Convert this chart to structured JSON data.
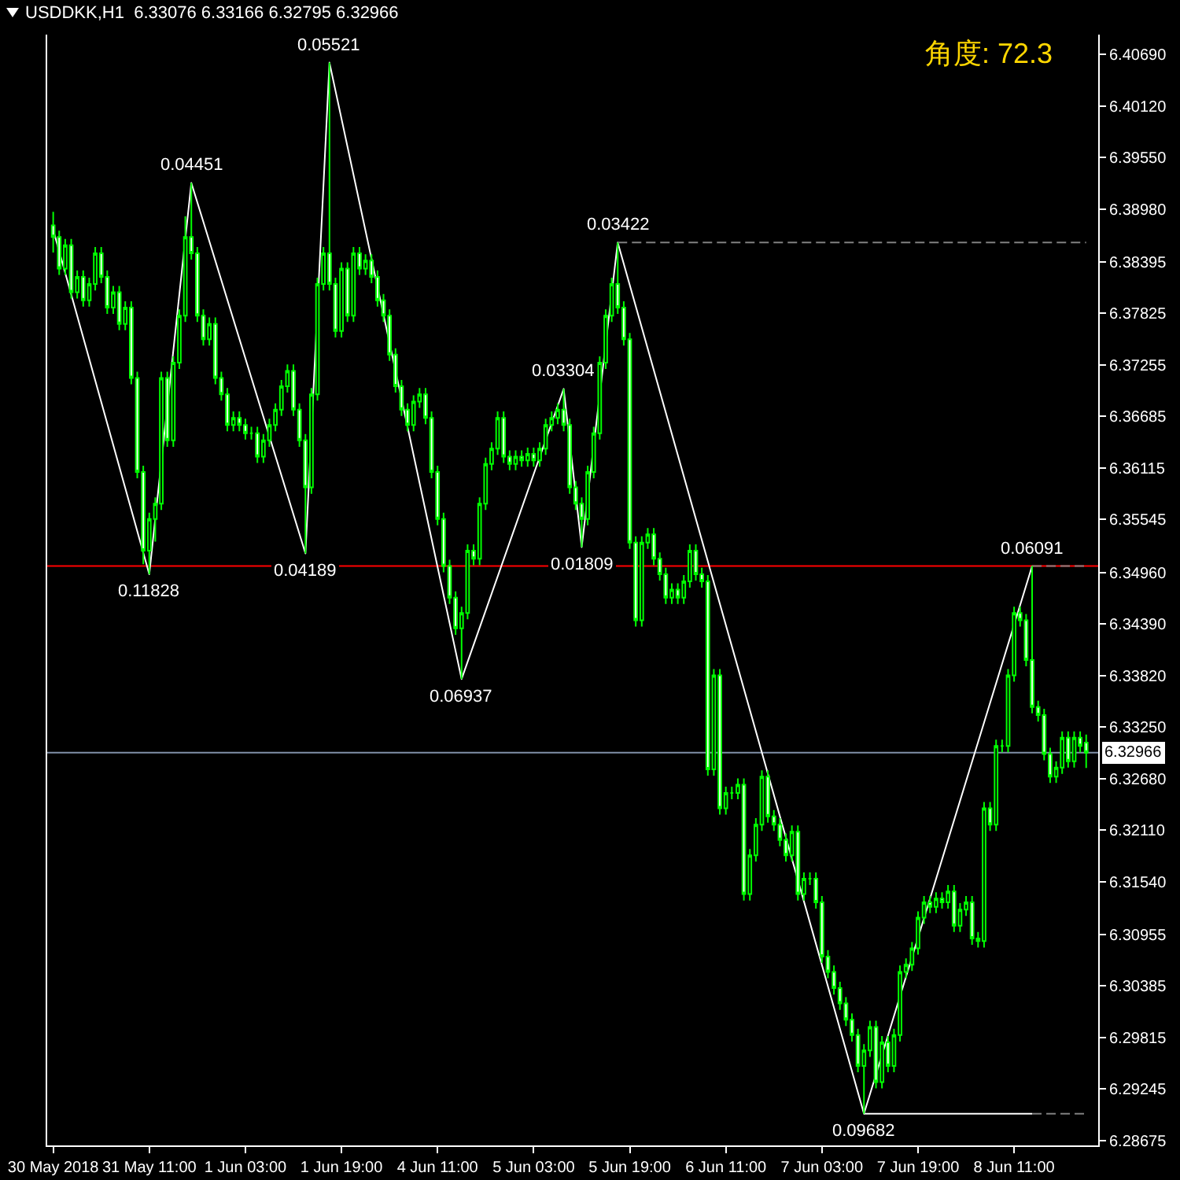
{
  "chart_data": {
    "type": "candlestick",
    "title": "USDDKK,H1  6.33076 6.33166 6.32795 6.32966",
    "annotations": [
      "角度: 72.3",
      {
        "text": "0.11828",
        "y": 6.3494
      },
      {
        "text": "0.04451",
        "y": 6.3927
      },
      {
        "text": "0.04189",
        "y": 6.3517
      },
      {
        "text": "0.05521",
        "y": 6.406
      },
      {
        "text": "0.06937",
        "y": 6.3378
      },
      {
        "text": "0.03304",
        "y": 6.3699
      },
      {
        "text": "0.01809",
        "y": 6.3524
      },
      {
        "text": "0.03422",
        "y": 6.3861
      },
      {
        "text": "0.09682",
        "y": 6.2897
      },
      {
        "text": "0.06091",
        "y": 6.3503
      }
    ],
    "categories": [
      "30 May 2018",
      null,
      null,
      null,
      null,
      null,
      null,
      null,
      null,
      null,
      null,
      null,
      null,
      null,
      null,
      null,
      "31 May 11:00",
      null,
      null,
      null,
      null,
      null,
      null,
      null,
      null,
      null,
      null,
      null,
      null,
      null,
      null,
      null,
      "1 Jun 03:00",
      null,
      null,
      null,
      null,
      null,
      null,
      null,
      null,
      null,
      null,
      null,
      null,
      null,
      null,
      null,
      "1 Jun 19:00",
      null,
      null,
      null,
      null,
      null,
      null,
      null,
      null,
      null,
      null,
      null,
      null,
      null,
      null,
      null,
      "4 Jun 11:00",
      null,
      null,
      null,
      null,
      null,
      null,
      null,
      null,
      null,
      null,
      null,
      null,
      null,
      null,
      null,
      "5 Jun 03:00",
      null,
      null,
      null,
      null,
      null,
      null,
      null,
      null,
      null,
      null,
      null,
      null,
      null,
      null,
      null,
      "5 Jun 19:00",
      null,
      null,
      null,
      null,
      null,
      null,
      null,
      null,
      null,
      null,
      null,
      null,
      null,
      null,
      null,
      "6 Jun 11:00",
      null,
      null,
      null,
      null,
      null,
      null,
      null,
      null,
      null,
      null,
      null,
      null,
      null,
      null,
      null,
      "7 Jun 03:00",
      null,
      null,
      null,
      null,
      null,
      null,
      null,
      null,
      null,
      null,
      null,
      null,
      null,
      null,
      null,
      "7 Jun 19:00",
      null,
      null,
      null,
      null,
      null,
      null,
      null,
      null,
      null,
      null,
      null,
      null,
      null,
      null,
      null,
      "8 Jun 11:00",
      null,
      null,
      null,
      null,
      null,
      null,
      null,
      null,
      null,
      null,
      null,
      null
    ],
    "color": "#00ff00",
    "ohlc": [
      [
        6.388,
        6.3895,
        6.385,
        6.3867
      ],
      [
        6.3867,
        6.3874,
        6.3825,
        6.3832
      ],
      [
        6.3832,
        6.3865,
        6.3825,
        6.3858
      ],
      [
        6.3858,
        6.3865,
        6.3799,
        6.3806
      ],
      [
        6.3806,
        6.383,
        6.3799,
        6.3823
      ],
      [
        6.3823,
        6.383,
        6.379,
        6.3797
      ],
      [
        6.3797,
        6.3822,
        6.379,
        6.3815
      ],
      [
        6.3815,
        6.3856,
        6.3808,
        6.3849
      ],
      [
        6.3849,
        6.3856,
        6.3816,
        6.3823
      ],
      [
        6.3823,
        6.383,
        6.3782,
        6.3789
      ],
      [
        6.3789,
        6.3813,
        6.3782,
        6.3806
      ],
      [
        6.3806,
        6.3813,
        6.3764,
        6.3771
      ],
      [
        6.3771,
        6.3796,
        6.3764,
        6.3789
      ],
      [
        6.3789,
        6.3796,
        6.3704,
        6.3711
      ],
      [
        6.3711,
        6.3718,
        6.36,
        6.3607
      ],
      [
        6.3607,
        6.3614,
        6.3505,
        6.352
      ],
      [
        6.352,
        6.3562,
        6.3494,
        6.3555
      ],
      [
        6.3555,
        6.3579,
        6.353,
        6.3572
      ],
      [
        6.3572,
        6.3718,
        6.3565,
        6.3711
      ],
      [
        6.3711,
        6.3718,
        6.3635,
        6.3642
      ],
      [
        6.3642,
        6.3735,
        6.3635,
        6.3728
      ],
      [
        6.3728,
        6.3787,
        6.3721,
        6.378
      ],
      [
        6.378,
        6.389,
        6.3773,
        6.3867
      ],
      [
        6.3867,
        6.3927,
        6.3842,
        6.3849
      ],
      [
        6.3849,
        6.3856,
        6.3773,
        6.378
      ],
      [
        6.378,
        6.3787,
        6.3747,
        6.3754
      ],
      [
        6.3754,
        6.3778,
        6.3747,
        6.3771
      ],
      [
        6.3771,
        6.3778,
        6.3704,
        6.3711
      ],
      [
        6.3711,
        6.3718,
        6.3686,
        6.3693
      ],
      [
        6.3693,
        6.37,
        6.3652,
        6.3659
      ],
      [
        6.3659,
        6.3674,
        6.3652,
        6.3667
      ],
      [
        6.3667,
        6.3674,
        6.3652,
        6.3659
      ],
      [
        6.3659,
        6.3666,
        6.3643,
        6.365
      ],
      [
        6.365,
        6.3657,
        6.3643,
        6.365
      ],
      [
        6.365,
        6.3657,
        6.3617,
        6.3624
      ],
      [
        6.3624,
        6.3649,
        6.3617,
        6.3642
      ],
      [
        6.3642,
        6.3666,
        6.3635,
        6.3659
      ],
      [
        6.3659,
        6.3683,
        6.3652,
        6.3676
      ],
      [
        6.3676,
        6.3709,
        6.3669,
        6.3702
      ],
      [
        6.3702,
        6.3726,
        6.3695,
        6.3719
      ],
      [
        6.3719,
        6.3726,
        6.3669,
        6.3676
      ],
      [
        6.3676,
        6.3683,
        6.3635,
        6.3642
      ],
      [
        6.3642,
        6.3649,
        6.3517,
        6.359
      ],
      [
        6.359,
        6.37,
        6.3583,
        6.3693
      ],
      [
        6.3693,
        6.3822,
        6.3686,
        6.3815
      ],
      [
        6.3815,
        6.3856,
        6.3808,
        6.3849
      ],
      [
        6.3849,
        6.406,
        6.3808,
        6.3815
      ],
      [
        6.3815,
        6.3822,
        6.3756,
        6.3763
      ],
      [
        6.3763,
        6.3839,
        6.3756,
        6.3832
      ],
      [
        6.3832,
        6.3839,
        6.3773,
        6.378
      ],
      [
        6.378,
        6.3856,
        6.3773,
        6.3849
      ],
      [
        6.3849,
        6.3856,
        6.3825,
        6.3832
      ],
      [
        6.3832,
        6.3848,
        6.3825,
        6.3841
      ],
      [
        6.3841,
        6.3848,
        6.3816,
        6.3823
      ],
      [
        6.3823,
        6.383,
        6.379,
        6.3797
      ],
      [
        6.3797,
        6.3804,
        6.3773,
        6.378
      ],
      [
        6.378,
        6.3787,
        6.373,
        6.3737
      ],
      [
        6.3737,
        6.3744,
        6.3695,
        6.3702
      ],
      [
        6.3702,
        6.3709,
        6.3669,
        6.3676
      ],
      [
        6.3676,
        6.3683,
        6.3652,
        6.3659
      ],
      [
        6.3659,
        6.3692,
        6.3652,
        6.3685
      ],
      [
        6.3685,
        6.37,
        6.3678,
        6.3693
      ],
      [
        6.3693,
        6.37,
        6.366,
        6.3667
      ],
      [
        6.3667,
        6.3674,
        6.36,
        6.3607
      ],
      [
        6.3607,
        6.3614,
        6.3548,
        6.3555
      ],
      [
        6.3555,
        6.3562,
        6.3496,
        6.3503
      ],
      [
        6.3503,
        6.351,
        6.3461,
        6.3468
      ],
      [
        6.3468,
        6.3475,
        6.3427,
        6.3434
      ],
      [
        6.3434,
        6.3458,
        6.3378,
        6.3451
      ],
      [
        6.3451,
        6.3527,
        6.3444,
        6.352
      ],
      [
        6.352,
        6.3527,
        6.3504,
        6.3511
      ],
      [
        6.3511,
        6.3579,
        6.3504,
        6.3572
      ],
      [
        6.3572,
        6.3623,
        6.3565,
        6.3616
      ],
      [
        6.3616,
        6.364,
        6.3609,
        6.3633
      ],
      [
        6.3633,
        6.3674,
        6.3626,
        6.3667
      ],
      [
        6.3667,
        6.3674,
        6.3617,
        6.3624
      ],
      [
        6.3624,
        6.3631,
        6.3609,
        6.3616
      ],
      [
        6.3616,
        6.3631,
        6.3609,
        6.3624
      ],
      [
        6.3624,
        6.3631,
        6.3613,
        6.362
      ],
      [
        6.362,
        6.3634,
        6.3613,
        6.3627
      ],
      [
        6.3627,
        6.3634,
        6.3613,
        6.362
      ],
      [
        6.362,
        6.364,
        6.3613,
        6.3633
      ],
      [
        6.3633,
        6.3666,
        6.3626,
        6.3659
      ],
      [
        6.3659,
        6.3674,
        6.3652,
        6.3667
      ],
      [
        6.3667,
        6.3683,
        6.366,
        6.3676
      ],
      [
        6.3676,
        6.3699,
        6.3652,
        6.3659
      ],
      [
        6.3659,
        6.3666,
        6.3583,
        6.359
      ],
      [
        6.359,
        6.3597,
        6.3565,
        6.3572
      ],
      [
        6.3572,
        6.3579,
        6.3524,
        6.3555
      ],
      [
        6.3555,
        6.3614,
        6.3548,
        6.3607
      ],
      [
        6.3607,
        6.3657,
        6.36,
        6.365
      ],
      [
        6.365,
        6.3735,
        6.3643,
        6.3728
      ],
      [
        6.3728,
        6.3787,
        6.3721,
        6.378
      ],
      [
        6.378,
        6.3822,
        6.3773,
        6.3815
      ],
      [
        6.3815,
        6.3861,
        6.3782,
        6.3789
      ],
      [
        6.3789,
        6.3796,
        6.3747,
        6.3754
      ],
      [
        6.3754,
        6.3761,
        6.3522,
        6.3529
      ],
      [
        6.3529,
        6.3536,
        6.3436,
        6.3443
      ],
      [
        6.3443,
        6.3536,
        6.3436,
        6.3529
      ],
      [
        6.3529,
        6.3545,
        6.3522,
        6.3538
      ],
      [
        6.3538,
        6.3545,
        6.3504,
        6.3511
      ],
      [
        6.3511,
        6.3518,
        6.3487,
        6.3494
      ],
      [
        6.3494,
        6.3501,
        6.3461,
        6.3468
      ],
      [
        6.3468,
        6.3484,
        6.3461,
        6.3477
      ],
      [
        6.3477,
        6.3484,
        6.3461,
        6.3468
      ],
      [
        6.3468,
        6.3493,
        6.3461,
        6.3486
      ],
      [
        6.3486,
        6.3527,
        6.3479,
        6.352
      ],
      [
        6.352,
        6.3527,
        6.3487,
        6.3494
      ],
      [
        6.3494,
        6.3501,
        6.3479,
        6.3486
      ],
      [
        6.3486,
        6.3493,
        6.3271,
        6.3278
      ],
      [
        6.3278,
        6.3389,
        6.3271,
        6.3382
      ],
      [
        6.3382,
        6.3389,
        6.3228,
        6.3235
      ],
      [
        6.3235,
        6.3259,
        6.3228,
        6.3252
      ],
      [
        6.3252,
        6.3259,
        6.3245,
        6.3252
      ],
      [
        6.3252,
        6.3268,
        6.3245,
        6.3261
      ],
      [
        6.3261,
        6.3268,
        6.3133,
        6.314
      ],
      [
        6.314,
        6.319,
        6.3133,
        6.3183
      ],
      [
        6.3183,
        6.3224,
        6.3176,
        6.3217
      ],
      [
        6.3217,
        6.3277,
        6.321,
        6.327
      ],
      [
        6.327,
        6.3277,
        6.3219,
        6.3226
      ],
      [
        6.3226,
        6.3233,
        6.321,
        6.3217
      ],
      [
        6.3217,
        6.3224,
        6.3193,
        6.32
      ],
      [
        6.32,
        6.3207,
        6.3176,
        6.3183
      ],
      [
        6.3183,
        6.3216,
        6.3176,
        6.3209
      ],
      [
        6.3209,
        6.3216,
        6.3133,
        6.314
      ],
      [
        6.314,
        6.3164,
        6.3133,
        6.3157
      ],
      [
        6.3157,
        6.3164,
        6.315,
        6.3157
      ],
      [
        6.3157,
        6.3164,
        6.3124,
        6.3131
      ],
      [
        6.3131,
        6.3138,
        6.3064,
        6.3071
      ],
      [
        6.3071,
        6.3078,
        6.3047,
        6.3054
      ],
      [
        6.3054,
        6.3061,
        6.3029,
        6.3036
      ],
      [
        6.3036,
        6.3043,
        6.3012,
        6.3019
      ],
      [
        6.3019,
        6.3026,
        6.2994,
        6.3001
      ],
      [
        6.3001,
        6.3008,
        6.2977,
        6.2984
      ],
      [
        6.2984,
        6.2991,
        6.2943,
        6.295
      ],
      [
        6.295,
        6.2974,
        6.2897,
        6.2967
      ],
      [
        6.2967,
        6.3,
        6.296,
        6.2993
      ],
      [
        6.2993,
        6.3,
        6.2925,
        6.2932
      ],
      [
        6.2932,
        6.2983,
        6.2925,
        6.2976
      ],
      [
        6.2976,
        6.2983,
        6.2943,
        6.295
      ],
      [
        6.295,
        6.2991,
        6.2943,
        6.2984
      ],
      [
        6.2984,
        6.3061,
        6.2977,
        6.3054
      ],
      [
        6.3054,
        6.3069,
        6.3047,
        6.3062
      ],
      [
        6.3062,
        6.3087,
        6.3055,
        6.308
      ],
      [
        6.308,
        6.3121,
        6.3073,
        6.3114
      ],
      [
        6.3114,
        6.3138,
        6.3107,
        6.3131
      ],
      [
        6.3131,
        6.3138,
        6.3119,
        6.3126
      ],
      [
        6.3126,
        6.3142,
        6.3119,
        6.3135
      ],
      [
        6.3135,
        6.3142,
        6.3124,
        6.3131
      ],
      [
        6.3131,
        6.315,
        6.3124,
        6.3143
      ],
      [
        6.3143,
        6.315,
        6.3098,
        6.3105
      ],
      [
        6.3105,
        6.313,
        6.3098,
        6.3123
      ],
      [
        6.3123,
        6.3138,
        6.3116,
        6.3131
      ],
      [
        6.3131,
        6.3138,
        6.3084,
        6.3091
      ],
      [
        6.3091,
        6.3098,
        6.3081,
        6.3088
      ],
      [
        6.3088,
        6.3242,
        6.3081,
        6.3235
      ],
      [
        6.3235,
        6.3242,
        6.321,
        6.3217
      ],
      [
        6.3217,
        6.3311,
        6.321,
        6.3304
      ],
      [
        6.3304,
        6.3311,
        6.3297,
        6.3304
      ],
      [
        6.3304,
        6.3389,
        6.3297,
        6.3382
      ],
      [
        6.3382,
        6.3458,
        6.3375,
        6.3451
      ],
      [
        6.3451,
        6.3458,
        6.3436,
        6.3443
      ],
      [
        6.3443,
        6.345,
        6.3392,
        6.3399
      ],
      [
        6.3399,
        6.3503,
        6.334,
        6.3347
      ],
      [
        6.3347,
        6.3354,
        6.3331,
        6.3338
      ],
      [
        6.3338,
        6.3345,
        6.3288,
        6.3295
      ],
      [
        6.3295,
        6.3302,
        6.3263,
        6.327
      ],
      [
        6.327,
        6.3287,
        6.3263,
        6.328
      ],
      [
        6.328,
        6.332,
        6.3273,
        6.3313
      ],
      [
        6.3313,
        6.332,
        6.328,
        6.3287
      ],
      [
        6.3287,
        6.332,
        6.328,
        6.3313
      ],
      [
        6.3313,
        6.332,
        6.3297,
        6.3304
      ],
      [
        6.33076,
        6.33166,
        6.32795,
        6.32966
      ]
    ],
    "series": [
      {
        "type": "line",
        "color": "#ffffff",
        "line_style": "solid",
        "values": [
          6.3875,
          null,
          null,
          null,
          null,
          null,
          null,
          null,
          null,
          null,
          null,
          null,
          null,
          null,
          null,
          null,
          6.3494,
          null,
          null,
          null,
          null,
          null,
          null,
          6.3927,
          null,
          null,
          null,
          null,
          null,
          null,
          null,
          null,
          null,
          null,
          null,
          null,
          null,
          null,
          null,
          null,
          null,
          null,
          6.3517,
          null,
          null,
          null,
          6.406,
          null,
          null,
          null,
          null,
          null,
          null,
          null,
          null,
          null,
          null,
          null,
          null,
          null,
          null,
          null,
          null,
          null,
          null,
          null,
          null,
          null,
          6.3378,
          null,
          null,
          null,
          null,
          null,
          null,
          null,
          null,
          null,
          null,
          null,
          null,
          null,
          null,
          null,
          null,
          6.3699,
          null,
          null,
          6.3524,
          null,
          null,
          null,
          null,
          null,
          6.3861,
          null,
          null,
          null,
          null,
          null,
          null,
          null,
          null,
          null,
          null,
          null,
          null,
          null,
          null,
          null,
          null,
          null,
          null,
          null,
          null,
          null,
          null,
          null,
          null,
          null,
          null,
          null,
          null,
          null,
          null,
          null,
          null,
          null,
          null,
          null,
          null,
          null,
          null,
          null,
          null,
          6.2897,
          null,
          null,
          null,
          null,
          null,
          null,
          null,
          null,
          null,
          null,
          null,
          null,
          null,
          null,
          null,
          null,
          null,
          null,
          null,
          null,
          null,
          null,
          null,
          null,
          null,
          null,
          null,
          6.3503,
          null,
          null,
          null,
          null,
          null,
          null,
          null,
          null,
          null
        ]
      },
      {
        "type": "line",
        "color": "#808080",
        "line_style": "dashed",
        "values": [
          null,
          null,
          null,
          null,
          null,
          null,
          null,
          null,
          null,
          null,
          null,
          null,
          null,
          null,
          null,
          null,
          null,
          null,
          null,
          null,
          null,
          null,
          null,
          null,
          null,
          null,
          null,
          null,
          null,
          null,
          null,
          null,
          null,
          null,
          null,
          null,
          null,
          null,
          null,
          null,
          null,
          null,
          null,
          null,
          null,
          null,
          null,
          null,
          null,
          null,
          null,
          null,
          null,
          null,
          null,
          null,
          null,
          null,
          null,
          null,
          null,
          null,
          null,
          null,
          null,
          null,
          null,
          null,
          null,
          null,
          null,
          null,
          null,
          null,
          null,
          null,
          null,
          null,
          null,
          null,
          null,
          null,
          null,
          null,
          null,
          null,
          null,
          null,
          null,
          null,
          null,
          null,
          null,
          null,
          6.3861,
          6.3861,
          6.3861,
          6.3861,
          6.3861,
          6.3861,
          6.3861,
          6.3861,
          6.3861,
          6.3861,
          6.3861,
          6.3861,
          6.3861,
          6.3861,
          6.3861,
          6.3861,
          6.3861,
          6.3861,
          6.3861,
          6.3861,
          6.3861,
          6.3861,
          6.3861,
          6.3861,
          6.3861,
          6.3861,
          6.3861,
          6.3861,
          6.3861,
          6.3861,
          6.3861,
          6.3861,
          6.3861,
          6.3861,
          6.3861,
          6.3861,
          6.3861,
          6.3861,
          6.3861,
          6.3861,
          6.3861,
          6.3861,
          6.3861,
          6.3861,
          6.3861,
          6.3861,
          6.3861,
          6.3861,
          6.3861,
          6.3861,
          6.3861,
          6.3861,
          6.3861,
          6.3861,
          6.3861,
          6.3861,
          6.3861,
          6.3861,
          6.3861,
          6.3861,
          6.3861,
          6.3861,
          6.3861,
          6.3861,
          6.3861,
          6.3861,
          6.3861,
          6.3861,
          6.3861,
          6.3861,
          6.3861,
          6.3861,
          6.3861,
          6.3861,
          6.3861,
          6.3861,
          6.3861,
          6.3861,
          6.3861
        ]
      },
      {
        "type": "line",
        "color": "#808080",
        "line_style": "dashed",
        "values": [
          null,
          null,
          null,
          null,
          null,
          null,
          null,
          null,
          null,
          null,
          null,
          null,
          null,
          null,
          null,
          null,
          null,
          null,
          null,
          null,
          null,
          null,
          null,
          null,
          null,
          null,
          null,
          null,
          null,
          null,
          null,
          null,
          null,
          null,
          null,
          null,
          null,
          null,
          null,
          null,
          null,
          null,
          null,
          null,
          null,
          null,
          null,
          null,
          null,
          null,
          null,
          null,
          null,
          null,
          null,
          null,
          null,
          null,
          null,
          null,
          null,
          null,
          null,
          null,
          null,
          null,
          null,
          null,
          null,
          null,
          null,
          null,
          null,
          null,
          null,
          null,
          null,
          null,
          null,
          null,
          null,
          null,
          null,
          null,
          null,
          null,
          null,
          null,
          null,
          null,
          null,
          null,
          null,
          null,
          null,
          null,
          null,
          null,
          null,
          null,
          null,
          null,
          null,
          null,
          null,
          null,
          null,
          null,
          null,
          null,
          null,
          null,
          null,
          null,
          null,
          null,
          null,
          null,
          null,
          null,
          null,
          null,
          null,
          null,
          null,
          null,
          null,
          null,
          null,
          null,
          null,
          null,
          null,
          null,
          null,
          null,
          null,
          null,
          null,
          null,
          null,
          null,
          null,
          null,
          null,
          null,
          null,
          null,
          null,
          null,
          null,
          null,
          null,
          null,
          null,
          null,
          null,
          null,
          null,
          null,
          null,
          null,
          null,
          6.3503,
          6.3503,
          6.3503,
          6.3503,
          6.3503,
          6.3503,
          6.3503,
          6.3503,
          6.3503,
          6.3503
        ]
      },
      {
        "type": "line",
        "color": "#ffffff",
        "line_style": "solid",
        "values": [
          null,
          null,
          null,
          null,
          null,
          null,
          null,
          null,
          null,
          null,
          null,
          null,
          null,
          null,
          null,
          null,
          null,
          null,
          null,
          null,
          null,
          null,
          null,
          null,
          null,
          null,
          null,
          null,
          null,
          null,
          null,
          null,
          null,
          null,
          null,
          null,
          null,
          null,
          null,
          null,
          null,
          null,
          null,
          null,
          null,
          null,
          null,
          null,
          null,
          null,
          null,
          null,
          null,
          null,
          null,
          null,
          null,
          null,
          null,
          null,
          null,
          null,
          null,
          null,
          null,
          null,
          null,
          null,
          null,
          null,
          null,
          null,
          null,
          null,
          null,
          null,
          null,
          null,
          null,
          null,
          null,
          null,
          null,
          null,
          null,
          null,
          null,
          null,
          null,
          null,
          null,
          null,
          null,
          null,
          null,
          null,
          null,
          null,
          null,
          null,
          null,
          null,
          null,
          null,
          null,
          null,
          null,
          null,
          null,
          null,
          null,
          null,
          null,
          null,
          null,
          null,
          null,
          null,
          null,
          null,
          null,
          null,
          null,
          null,
          null,
          null,
          null,
          null,
          null,
          null,
          null,
          null,
          null,
          null,
          null,
          6.2897,
          6.2897,
          6.2897,
          6.2897,
          6.2897,
          6.2897,
          6.2897,
          6.2897,
          6.2897,
          6.2897,
          6.2897,
          6.2897,
          6.2897,
          6.2897,
          6.2897,
          6.2897,
          6.2897,
          6.2897,
          6.2897,
          6.2897,
          6.2897,
          6.2897,
          6.2897,
          6.2897,
          6.2897,
          6.2897,
          6.2897,
          6.2897,
          6.2897,
          null,
          null,
          null,
          null,
          null,
          null,
          null,
          null,
          null
        ]
      },
      {
        "type": "line",
        "color": "#808080",
        "line_style": "dashed",
        "values": [
          null,
          null,
          null,
          null,
          null,
          null,
          null,
          null,
          null,
          null,
          null,
          null,
          null,
          null,
          null,
          null,
          null,
          null,
          null,
          null,
          null,
          null,
          null,
          null,
          null,
          null,
          null,
          null,
          null,
          null,
          null,
          null,
          null,
          null,
          null,
          null,
          null,
          null,
          null,
          null,
          null,
          null,
          null,
          null,
          null,
          null,
          null,
          null,
          null,
          null,
          null,
          null,
          null,
          null,
          null,
          null,
          null,
          null,
          null,
          null,
          null,
          null,
          null,
          null,
          null,
          null,
          null,
          null,
          null,
          null,
          null,
          null,
          null,
          null,
          null,
          null,
          null,
          null,
          null,
          null,
          null,
          null,
          null,
          null,
          null,
          null,
          null,
          null,
          null,
          null,
          null,
          null,
          null,
          null,
          null,
          null,
          null,
          null,
          null,
          null,
          null,
          null,
          null,
          null,
          null,
          null,
          null,
          null,
          null,
          null,
          null,
          null,
          null,
          null,
          null,
          null,
          null,
          null,
          null,
          null,
          null,
          null,
          null,
          null,
          null,
          null,
          null,
          null,
          null,
          null,
          null,
          null,
          null,
          null,
          null,
          null,
          null,
          null,
          null,
          null,
          null,
          null,
          null,
          null,
          null,
          null,
          null,
          null,
          null,
          null,
          null,
          null,
          null,
          null,
          null,
          null,
          null,
          null,
          null,
          null,
          null,
          null,
          null,
          6.2897,
          6.2897,
          6.2897,
          6.2897,
          6.2897,
          6.2897,
          6.2897,
          6.2897,
          6.2897,
          6.2897
        ]
      }
    ],
    "ylim": [
      6.2862,
      6.4091
    ],
    "yticks": [
      {
        "value": 6.4069,
        "label": "6.40690"
      },
      {
        "value": 6.4012,
        "label": "6.40120"
      },
      {
        "value": 6.3955,
        "label": "6.39550"
      },
      {
        "value": 6.3898,
        "label": "6.38980"
      },
      {
        "value": 6.38395,
        "label": "6.38395"
      },
      {
        "value": 6.37825,
        "label": "6.37825"
      },
      {
        "value": 6.37255,
        "label": "6.37255"
      },
      {
        "value": 6.36685,
        "label": "6.36685"
      },
      {
        "value": 6.36115,
        "label": "6.36115"
      },
      {
        "value": 6.35545,
        "label": "6.35545"
      },
      {
        "value": 6.3496,
        "label": "6.34960"
      },
      {
        "value": 6.3439,
        "label": "6.34390"
      },
      {
        "value": 6.3382,
        "label": "6.33820"
      },
      {
        "value": 6.3325,
        "label": "6.33250"
      },
      {
        "value": 6.3268,
        "label": "6.32680"
      },
      {
        "value": 6.3211,
        "label": "6.32110"
      },
      {
        "value": 6.3154,
        "label": "6.31540"
      },
      {
        "value": 6.30955,
        "label": "6.30955"
      },
      {
        "value": 6.30385,
        "label": "6.30385"
      },
      {
        "value": 6.29815,
        "label": "6.29815"
      },
      {
        "value": 6.29245,
        "label": "6.29245"
      },
      {
        "value": 6.28675,
        "label": "6.28675"
      }
    ],
    "ref_lines": [
      {
        "axis": "y",
        "value": 6.3503,
        "color": "#ff0000",
        "line_style": "solid"
      },
      {
        "axis": "y",
        "value": 6.32966,
        "label": "6.32966",
        "color": "#8090a8",
        "line_style": "solid"
      }
    ]
  }
}
